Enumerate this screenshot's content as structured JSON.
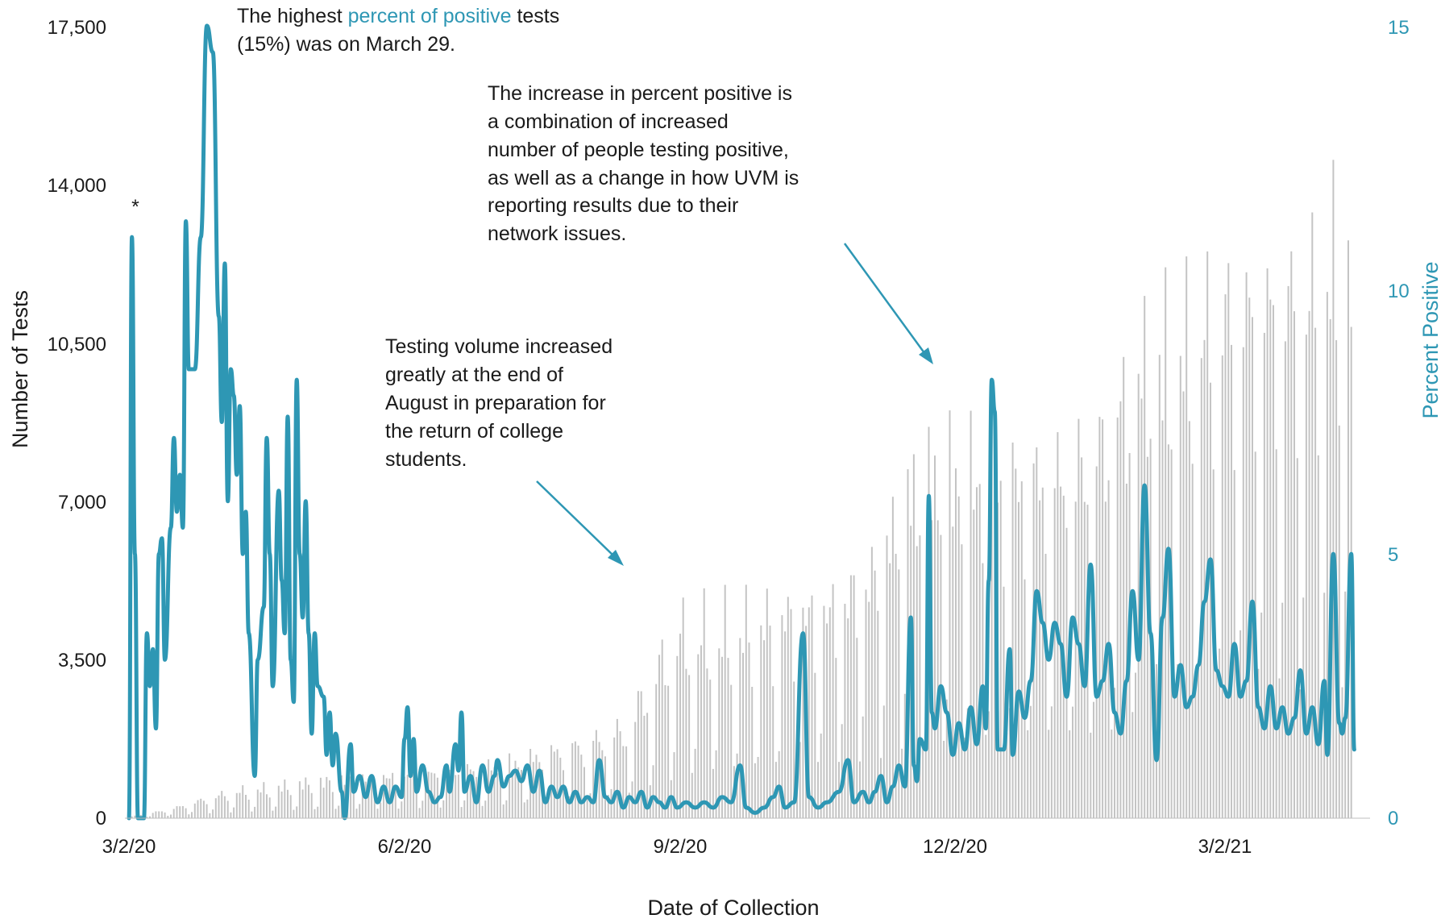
{
  "chart_data": {
    "type": "bar+line",
    "xlabel": "Date of Collection",
    "ylabel_left": "Number of Tests",
    "ylabel_right": "Percent Positive",
    "ylim_left": [
      0,
      17500
    ],
    "ylim_right": [
      0,
      15
    ],
    "left_ticks": [
      "0",
      "3,500",
      "7,000",
      "10,500",
      "14,000",
      "17,500"
    ],
    "right_ticks": [
      "0",
      "5",
      "10",
      "15"
    ],
    "x_ticks": [
      "3/2/20",
      "6/2/20",
      "9/2/20",
      "12/2/20",
      "3/2/21"
    ],
    "x_range": [
      "2020-03-02",
      "2021-04-14"
    ],
    "grid": false,
    "series": [
      {
        "name": "Number of Tests",
        "kind": "bar",
        "axis": "left",
        "color": "#c4c4c4",
        "anchors": [
          [
            "2020-03-02",
            30
          ],
          [
            "2020-03-15",
            200
          ],
          [
            "2020-03-25",
            400
          ],
          [
            "2020-04-05",
            600
          ],
          [
            "2020-04-20",
            700
          ],
          [
            "2020-05-01",
            800
          ],
          [
            "2020-05-15",
            900
          ],
          [
            "2020-06-01",
            1000
          ],
          [
            "2020-06-15",
            1100
          ],
          [
            "2020-07-01",
            1200
          ],
          [
            "2020-07-15",
            1400
          ],
          [
            "2020-08-01",
            1700
          ],
          [
            "2020-08-15",
            2100
          ],
          [
            "2020-08-25",
            3400
          ],
          [
            "2020-09-02",
            4200
          ],
          [
            "2020-09-20",
            4300
          ],
          [
            "2020-10-05",
            4600
          ],
          [
            "2020-10-20",
            5000
          ],
          [
            "2020-11-05",
            5800
          ],
          [
            "2020-11-20",
            7800
          ],
          [
            "2020-12-02",
            7900
          ],
          [
            "2020-12-20",
            7700
          ],
          [
            "2021-01-05",
            7900
          ],
          [
            "2021-01-20",
            8500
          ],
          [
            "2021-02-05",
            10400
          ],
          [
            "2021-02-20",
            11000
          ],
          [
            "2021-03-02",
            11800
          ],
          [
            "2021-03-15",
            12300
          ],
          [
            "2021-04-01",
            12200
          ],
          [
            "2021-04-08",
            12700
          ],
          [
            "2021-04-14",
            13000
          ]
        ],
        "peak": 15000
      },
      {
        "name": "Percent Positive",
        "kind": "line",
        "axis": "right",
        "color": "#2e97b4",
        "points": [
          [
            "2020-03-02",
            0
          ],
          [
            "2020-03-03",
            11.0
          ],
          [
            "2020-03-04",
            5.0
          ],
          [
            "2020-03-05",
            0
          ],
          [
            "2020-03-07",
            0
          ],
          [
            "2020-03-08",
            3.5
          ],
          [
            "2020-03-09",
            2.5
          ],
          [
            "2020-03-10",
            3.2
          ],
          [
            "2020-03-11",
            1.7
          ],
          [
            "2020-03-12",
            5.0
          ],
          [
            "2020-03-13",
            5.3
          ],
          [
            "2020-03-14",
            3.0
          ],
          [
            "2020-03-16",
            5.5
          ],
          [
            "2020-03-17",
            7.2
          ],
          [
            "2020-03-18",
            5.8
          ],
          [
            "2020-03-19",
            6.5
          ],
          [
            "2020-03-20",
            5.5
          ],
          [
            "2020-03-21",
            11.3
          ],
          [
            "2020-03-22",
            8.5
          ],
          [
            "2020-03-24",
            8.5
          ],
          [
            "2020-03-26",
            11.0
          ],
          [
            "2020-03-28",
            15.0
          ],
          [
            "2020-03-30",
            14.5
          ],
          [
            "2020-04-01",
            9.5
          ],
          [
            "2020-04-02",
            7.5
          ],
          [
            "2020-04-03",
            10.5
          ],
          [
            "2020-04-04",
            6.0
          ],
          [
            "2020-04-05",
            8.5
          ],
          [
            "2020-04-06",
            8.0
          ],
          [
            "2020-04-07",
            6.5
          ],
          [
            "2020-04-08",
            7.8
          ],
          [
            "2020-04-09",
            5.0
          ],
          [
            "2020-04-10",
            5.8
          ],
          [
            "2020-04-11",
            3.5
          ],
          [
            "2020-04-13",
            0.8
          ],
          [
            "2020-04-14",
            3.0
          ],
          [
            "2020-04-16",
            4.0
          ],
          [
            "2020-04-17",
            7.2
          ],
          [
            "2020-04-18",
            5.0
          ],
          [
            "2020-04-19",
            2.5
          ],
          [
            "2020-04-21",
            6.2
          ],
          [
            "2020-04-22",
            4.5
          ],
          [
            "2020-04-23",
            3.5
          ],
          [
            "2020-04-24",
            7.6
          ],
          [
            "2020-04-25",
            3.0
          ],
          [
            "2020-04-26",
            2.2
          ],
          [
            "2020-04-27",
            8.3
          ],
          [
            "2020-04-28",
            5.0
          ],
          [
            "2020-04-29",
            3.8
          ],
          [
            "2020-04-30",
            6.0
          ],
          [
            "2020-05-01",
            3.5
          ],
          [
            "2020-05-02",
            1.6
          ],
          [
            "2020-05-03",
            3.5
          ],
          [
            "2020-05-04",
            2.5
          ],
          [
            "2020-05-06",
            2.3
          ],
          [
            "2020-05-07",
            1.2
          ],
          [
            "2020-05-08",
            2.0
          ],
          [
            "2020-05-09",
            1.0
          ],
          [
            "2020-05-10",
            1.6
          ],
          [
            "2020-05-12",
            0.5
          ],
          [
            "2020-05-13",
            0
          ],
          [
            "2020-05-15",
            1.4
          ],
          [
            "2020-05-16",
            0.5
          ],
          [
            "2020-05-18",
            0.8
          ],
          [
            "2020-05-20",
            0.4
          ],
          [
            "2020-05-22",
            0.8
          ],
          [
            "2020-05-24",
            0.3
          ],
          [
            "2020-05-26",
            0.6
          ],
          [
            "2020-05-28",
            0.3
          ],
          [
            "2020-05-30",
            0.6
          ],
          [
            "2020-06-01",
            0.4
          ],
          [
            "2020-06-02",
            1.5
          ],
          [
            "2020-06-03",
            2.1
          ],
          [
            "2020-06-04",
            0.8
          ],
          [
            "2020-06-05",
            1.5
          ],
          [
            "2020-06-06",
            0.5
          ],
          [
            "2020-06-08",
            1.0
          ],
          [
            "2020-06-10",
            0.5
          ],
          [
            "2020-06-12",
            0.3
          ],
          [
            "2020-06-14",
            0.4
          ],
          [
            "2020-06-16",
            1.0
          ],
          [
            "2020-06-17",
            0.5
          ],
          [
            "2020-06-19",
            1.4
          ],
          [
            "2020-06-20",
            0.9
          ],
          [
            "2020-06-21",
            2.0
          ],
          [
            "2020-06-22",
            0.5
          ],
          [
            "2020-06-24",
            0.8
          ],
          [
            "2020-06-26",
            0.3
          ],
          [
            "2020-06-28",
            1.0
          ],
          [
            "2020-06-30",
            0.5
          ],
          [
            "2020-07-02",
            0.8
          ],
          [
            "2020-07-03",
            1.1
          ],
          [
            "2020-07-05",
            0.6
          ],
          [
            "2020-07-07",
            0.8
          ],
          [
            "2020-07-09",
            0.9
          ],
          [
            "2020-07-11",
            0.7
          ],
          [
            "2020-07-13",
            1.0
          ],
          [
            "2020-07-15",
            0.5
          ],
          [
            "2020-07-17",
            0.9
          ],
          [
            "2020-07-19",
            0.3
          ],
          [
            "2020-07-21",
            0.6
          ],
          [
            "2020-07-23",
            0.4
          ],
          [
            "2020-07-25",
            0.6
          ],
          [
            "2020-07-27",
            0.3
          ],
          [
            "2020-07-29",
            0.5
          ],
          [
            "2020-07-31",
            0.3
          ],
          [
            "2020-08-02",
            0.4
          ],
          [
            "2020-08-04",
            0.3
          ],
          [
            "2020-08-06",
            1.1
          ],
          [
            "2020-08-08",
            0.4
          ],
          [
            "2020-08-10",
            0.3
          ],
          [
            "2020-08-12",
            0.5
          ],
          [
            "2020-08-14",
            0.2
          ],
          [
            "2020-08-16",
            0.4
          ],
          [
            "2020-08-18",
            0.3
          ],
          [
            "2020-08-20",
            0.5
          ],
          [
            "2020-08-22",
            0.2
          ],
          [
            "2020-08-24",
            0.4
          ],
          [
            "2020-08-26",
            0.3
          ],
          [
            "2020-08-28",
            0.2
          ],
          [
            "2020-08-30",
            0.4
          ],
          [
            "2020-09-01",
            0.2
          ],
          [
            "2020-09-04",
            0.3
          ],
          [
            "2020-09-07",
            0.2
          ],
          [
            "2020-09-10",
            0.3
          ],
          [
            "2020-09-13",
            0.2
          ],
          [
            "2020-09-16",
            0.4
          ],
          [
            "2020-09-19",
            0.3
          ],
          [
            "2020-09-22",
            1.0
          ],
          [
            "2020-09-24",
            0.2
          ],
          [
            "2020-09-27",
            0.1
          ],
          [
            "2020-09-30",
            0.2
          ],
          [
            "2020-10-03",
            0.4
          ],
          [
            "2020-10-05",
            0.6
          ],
          [
            "2020-10-07",
            0.2
          ],
          [
            "2020-10-10",
            0.3
          ],
          [
            "2020-10-13",
            3.5
          ],
          [
            "2020-10-15",
            0.4
          ],
          [
            "2020-10-18",
            0.2
          ],
          [
            "2020-10-21",
            0.3
          ],
          [
            "2020-10-25",
            0.5
          ],
          [
            "2020-10-28",
            1.1
          ],
          [
            "2020-10-30",
            0.3
          ],
          [
            "2020-11-02",
            0.5
          ],
          [
            "2020-11-04",
            0.3
          ],
          [
            "2020-11-06",
            0.5
          ],
          [
            "2020-11-08",
            0.8
          ],
          [
            "2020-11-10",
            0.3
          ],
          [
            "2020-11-12",
            0.6
          ],
          [
            "2020-11-14",
            1.0
          ],
          [
            "2020-11-16",
            0.6
          ],
          [
            "2020-11-18",
            3.8
          ],
          [
            "2020-11-19",
            1.0
          ],
          [
            "2020-11-20",
            0.7
          ],
          [
            "2020-11-21",
            1.5
          ],
          [
            "2020-11-23",
            1.3
          ],
          [
            "2020-11-24",
            6.1
          ],
          [
            "2020-11-25",
            2.0
          ],
          [
            "2020-11-26",
            1.7
          ],
          [
            "2020-11-28",
            2.5
          ],
          [
            "2020-11-30",
            2.0
          ],
          [
            "2020-12-02",
            1.2
          ],
          [
            "2020-12-04",
            1.8
          ],
          [
            "2020-12-06",
            1.3
          ],
          [
            "2020-12-08",
            2.1
          ],
          [
            "2020-12-10",
            1.4
          ],
          [
            "2020-12-12",
            2.5
          ],
          [
            "2020-12-13",
            1.7
          ],
          [
            "2020-12-14",
            4.5
          ],
          [
            "2020-12-15",
            8.3
          ],
          [
            "2020-12-16",
            7.7
          ],
          [
            "2020-12-17",
            1.3
          ],
          [
            "2020-12-19",
            1.3
          ],
          [
            "2020-12-21",
            3.2
          ],
          [
            "2020-12-22",
            1.2
          ],
          [
            "2020-12-24",
            2.4
          ],
          [
            "2020-12-26",
            1.9
          ],
          [
            "2020-12-28",
            2.6
          ],
          [
            "2020-12-30",
            4.3
          ],
          [
            "2021-01-01",
            3.7
          ],
          [
            "2021-01-03",
            3.0
          ],
          [
            "2021-01-05",
            3.7
          ],
          [
            "2021-01-07",
            3.3
          ],
          [
            "2021-01-09",
            2.3
          ],
          [
            "2021-01-11",
            3.8
          ],
          [
            "2021-01-13",
            3.3
          ],
          [
            "2021-01-15",
            2.5
          ],
          [
            "2021-01-17",
            4.8
          ],
          [
            "2021-01-19",
            2.3
          ],
          [
            "2021-01-21",
            2.6
          ],
          [
            "2021-01-23",
            3.3
          ],
          [
            "2021-01-25",
            2.0
          ],
          [
            "2021-01-27",
            1.6
          ],
          [
            "2021-01-29",
            2.6
          ],
          [
            "2021-01-31",
            4.3
          ],
          [
            "2021-02-02",
            3.0
          ],
          [
            "2021-02-04",
            6.3
          ],
          [
            "2021-02-06",
            3.5
          ],
          [
            "2021-02-08",
            1.1
          ],
          [
            "2021-02-10",
            3.8
          ],
          [
            "2021-02-12",
            5.1
          ],
          [
            "2021-02-14",
            2.3
          ],
          [
            "2021-02-16",
            2.9
          ],
          [
            "2021-02-18",
            2.1
          ],
          [
            "2021-02-20",
            2.3
          ],
          [
            "2021-02-22",
            2.9
          ],
          [
            "2021-02-24",
            4.1
          ],
          [
            "2021-02-26",
            4.9
          ],
          [
            "2021-02-28",
            2.8
          ],
          [
            "2021-03-02",
            2.5
          ],
          [
            "2021-03-04",
            2.3
          ],
          [
            "2021-03-06",
            3.3
          ],
          [
            "2021-03-08",
            2.3
          ],
          [
            "2021-03-10",
            2.6
          ],
          [
            "2021-03-12",
            4.1
          ],
          [
            "2021-03-14",
            2.1
          ],
          [
            "2021-03-16",
            1.7
          ],
          [
            "2021-03-18",
            2.5
          ],
          [
            "2021-03-20",
            1.7
          ],
          [
            "2021-03-22",
            2.1
          ],
          [
            "2021-03-24",
            1.6
          ],
          [
            "2021-03-26",
            1.9
          ],
          [
            "2021-03-28",
            2.8
          ],
          [
            "2021-03-30",
            1.6
          ],
          [
            "2021-04-01",
            2.1
          ],
          [
            "2021-04-03",
            1.4
          ],
          [
            "2021-04-05",
            2.6
          ],
          [
            "2021-04-06",
            1.2
          ],
          [
            "2021-04-08",
            5.0
          ],
          [
            "2021-04-10",
            1.8
          ],
          [
            "2021-04-11",
            1.6
          ],
          [
            "2021-04-12",
            1.9
          ],
          [
            "2021-04-14",
            5.0
          ],
          [
            "2021-04-15",
            1.3
          ]
        ]
      }
    ],
    "annotations": {
      "asterisk": "*",
      "highest_pre": "The highest ",
      "highest_accent": "percent of positive",
      "highest_post": " tests",
      "highest_line2": "(15%) was on March 29.",
      "increase_lines": [
        "The increase in percent positive is",
        "a combination of increased",
        "number of people testing positive,",
        "as well as a change in how UVM is",
        "reporting results due to their",
        "network issues."
      ],
      "volume_lines": [
        "Testing volume increased",
        "greatly at the end of",
        "August in preparation for",
        "the return of college",
        "students."
      ]
    }
  }
}
